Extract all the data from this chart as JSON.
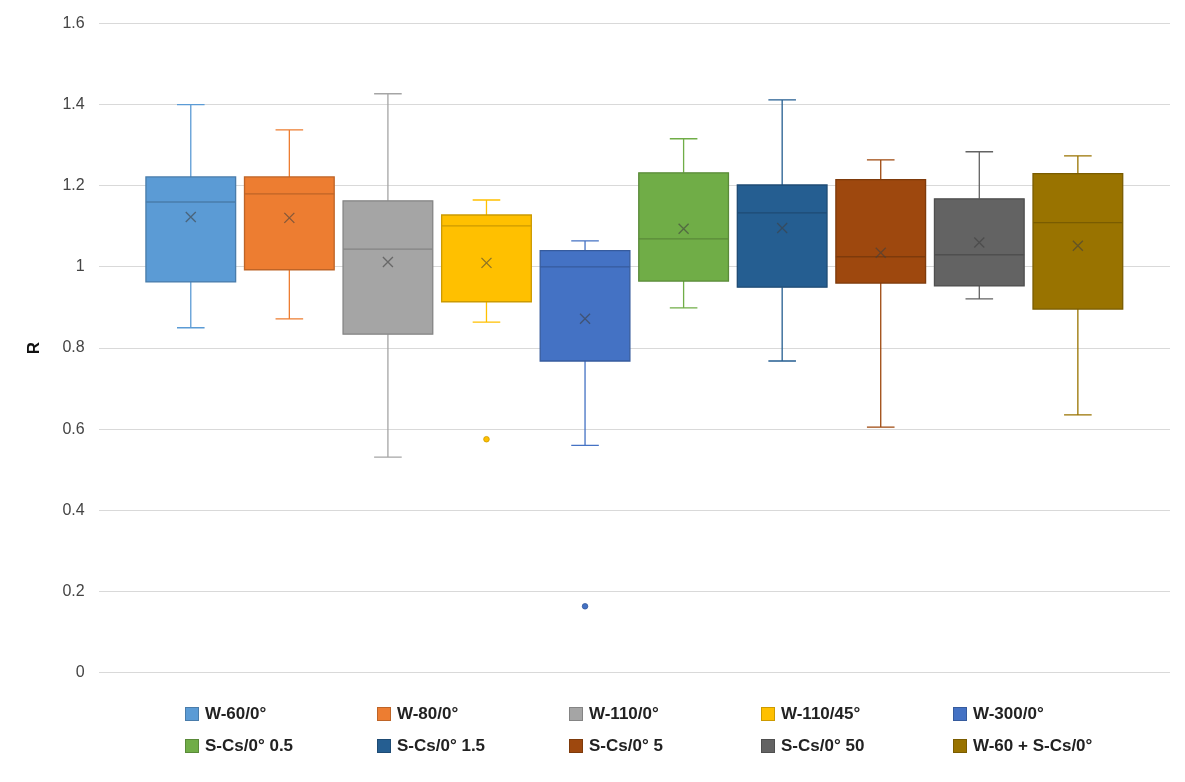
{
  "chart_data": {
    "type": "box",
    "ylabel": "R",
    "categories": [
      null
    ],
    "ylim": [
      0,
      1.6
    ],
    "yticks": [
      0,
      0.2,
      0.4,
      0.6,
      0.8,
      1,
      1.2,
      1.4,
      1.6
    ],
    "grid": "y",
    "legend": "bottom",
    "marker": "cross",
    "series": [
      {
        "name": "W-60/0°",
        "color": "#5b9bd5",
        "boxes": [
          {
            "low": 0.85,
            "q1": 0.963,
            "median": 1.16,
            "q3": 1.222,
            "high": 1.4,
            "mean": 1.123
          }
        ]
      },
      {
        "name": "W-80/0°",
        "color": "#ed7d31",
        "boxes": [
          {
            "low": 0.872,
            "q1": 0.993,
            "median": 1.18,
            "q3": 1.222,
            "high": 1.338,
            "mean": 1.121
          }
        ]
      },
      {
        "name": "W-110/0°",
        "color": "#a5a5a5",
        "boxes": [
          {
            "low": 0.531,
            "q1": 0.834,
            "median": 1.044,
            "q3": 1.163,
            "high": 1.427,
            "mean": 1.012
          }
        ]
      },
      {
        "name": "W-110/45°",
        "color": "#ffc000",
        "boxes": [
          {
            "low": 0.864,
            "q1": 0.914,
            "median": 1.101,
            "q3": 1.128,
            "high": 1.165,
            "mean": 1.01,
            "outliers": [
              0.575
            ]
          }
        ]
      },
      {
        "name": "W-300/0°",
        "color": "#4472c4",
        "boxes": [
          {
            "low": 0.56,
            "q1": 0.768,
            "median": 1.0,
            "q3": 1.04,
            "high": 1.064,
            "mean": 0.872,
            "outliers": [
              0.163
            ]
          }
        ]
      },
      {
        "name": "S-Cs/0° 0.5",
        "color": "#70ad47",
        "boxes": [
          {
            "low": 0.899,
            "q1": 0.965,
            "median": 1.069,
            "q3": 1.232,
            "high": 1.316,
            "mean": 1.094
          }
        ]
      },
      {
        "name": "S-Cs/0° 1.5",
        "color": "#255e91",
        "boxes": [
          {
            "low": 0.768,
            "q1": 0.95,
            "median": 1.133,
            "q3": 1.202,
            "high": 1.412,
            "mean": 1.096
          }
        ]
      },
      {
        "name": "S-Cs/0° 5",
        "color": "#9e480e",
        "boxes": [
          {
            "low": 0.605,
            "q1": 0.96,
            "median": 1.025,
            "q3": 1.215,
            "high": 1.264,
            "mean": 1.035
          }
        ]
      },
      {
        "name": "S-Cs/0° 50",
        "color": "#636363",
        "boxes": [
          {
            "low": 0.921,
            "q1": 0.953,
            "median": 1.03,
            "q3": 1.168,
            "high": 1.284,
            "mean": 1.06
          }
        ]
      },
      {
        "name": "W-60 + S-Cs/0°",
        "color": "#997300",
        "boxes": [
          {
            "low": 0.635,
            "q1": 0.896,
            "median": 1.109,
            "q3": 1.23,
            "high": 1.274,
            "mean": 1.052
          }
        ]
      }
    ]
  }
}
